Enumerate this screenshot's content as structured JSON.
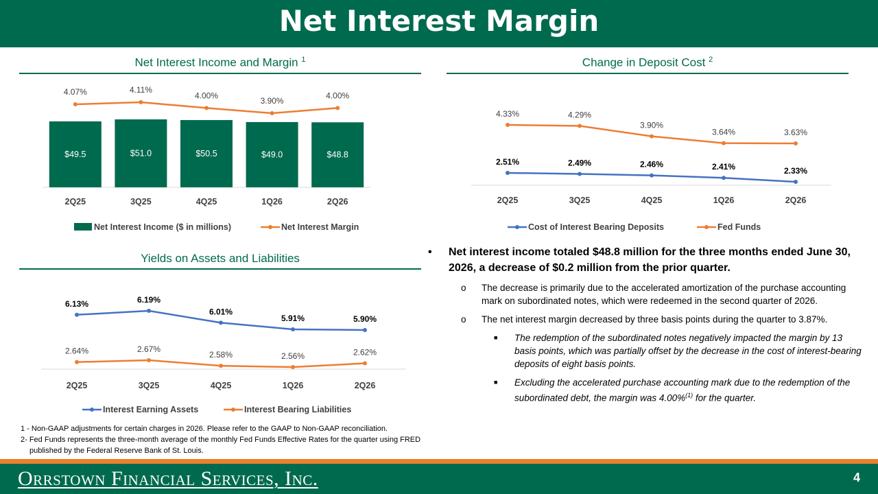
{
  "page": {
    "title": "Net Interest Margin",
    "page_number": "4",
    "logo_text": "Orrstown Financial Services, Inc."
  },
  "colors": {
    "green": "#006a4e",
    "orange": "#ed7d31",
    "blue": "#4472c4"
  },
  "sections": {
    "nii": {
      "title": "Net Interest Income and Margin",
      "sup": "1"
    },
    "deposit": {
      "title": "Change in Deposit Cost",
      "sup": "2"
    },
    "yields": {
      "title": "Yields on Assets and Liabilities"
    }
  },
  "chart_data": [
    {
      "id": "nii",
      "type": "bar",
      "categories": [
        "2Q25",
        "3Q25",
        "4Q25",
        "1Q26",
        "2Q26"
      ],
      "series": [
        {
          "name": "Net Interest Income ($ in millions)",
          "kind": "bar",
          "color": "#006a4e",
          "values": [
            49.5,
            51.0,
            50.5,
            49.0,
            48.8
          ],
          "labels": [
            "$49.5",
            "$51.0",
            "$50.5",
            "$49.0",
            "$48.8"
          ]
        },
        {
          "name": "Net Interest Margin",
          "kind": "line",
          "color": "#ed7d31",
          "values": [
            4.07,
            4.11,
            4.0,
            3.9,
            4.0
          ],
          "labels": [
            "4.07%",
            "4.11%",
            "4.00%",
            "3.90%",
            "4.00%"
          ]
        }
      ],
      "legend": "bottom"
    },
    {
      "id": "deposit",
      "type": "line",
      "categories": [
        "2Q25",
        "3Q25",
        "4Q25",
        "1Q26",
        "2Q26"
      ],
      "series": [
        {
          "name": "Cost of Interest Bearing Deposits",
          "color": "#4472c4",
          "values": [
            2.51,
            2.49,
            2.46,
            2.41,
            2.33
          ],
          "labels": [
            "2.51%",
            "2.49%",
            "2.46%",
            "2.41%",
            "2.33%"
          ]
        },
        {
          "name": "Fed Funds",
          "color": "#ed7d31",
          "values": [
            4.33,
            4.29,
            3.9,
            3.64,
            3.63
          ],
          "labels": [
            "4.33%",
            "4.29%",
            "3.90%",
            "3.64%",
            "3.63%"
          ]
        }
      ],
      "legend": "bottom"
    },
    {
      "id": "yields",
      "type": "line",
      "categories": [
        "2Q25",
        "3Q25",
        "4Q25",
        "1Q26",
        "2Q26"
      ],
      "series": [
        {
          "name": "Interest Earning Assets",
          "color": "#4472c4",
          "values": [
            6.13,
            6.19,
            6.01,
            5.91,
            5.9
          ],
          "labels": [
            "6.13%",
            "6.19%",
            "6.01%",
            "5.91%",
            "5.90%"
          ]
        },
        {
          "name": "Interest Bearing Liabilities",
          "color": "#ed7d31",
          "values": [
            2.64,
            2.67,
            2.58,
            2.56,
            2.62
          ],
          "labels": [
            "2.64%",
            "2.67%",
            "2.58%",
            "2.56%",
            "2.62%"
          ]
        }
      ],
      "legend": "bottom"
    }
  ],
  "commentary": {
    "main": "Net interest income totaled $48.8 million for the three months ended June 30, 2026, a decrease of $0.2 million from the prior quarter.",
    "sub1": "The decrease is primarily due to the accelerated amortization of the purchase accounting mark on subordinated notes, which were redeemed in the second quarter of 2026.",
    "sub2": "The net interest margin decreased by three basis points during the quarter to 3.87%.",
    "sub2a": "The redemption of the subordinated notes negatively impacted the margin by 13 basis points, which was partially offset by the decrease in the cost of interest-bearing deposits of eight basis points.",
    "sub2b_pre": "Excluding the accelerated purchase accounting mark due to the redemption of the subordinated debt, the margin was 4.00%",
    "sub2b_sup": "(1)",
    "sub2b_post": " for the quarter.",
    "bullet_l1": "•",
    "bullet_l2": "o",
    "bullet_l3": "■"
  },
  "footnotes": {
    "fn1": "1 - Non-GAAP adjustments for certain charges in 2026. Please refer to the GAAP to Non-GAAP reconciliation.",
    "fn2": "2- Fed Funds represents the three-month average of the monthly Fed Funds Effective Rates for the quarter using FRED published by the Federal Reserve Bank of St. Louis."
  }
}
